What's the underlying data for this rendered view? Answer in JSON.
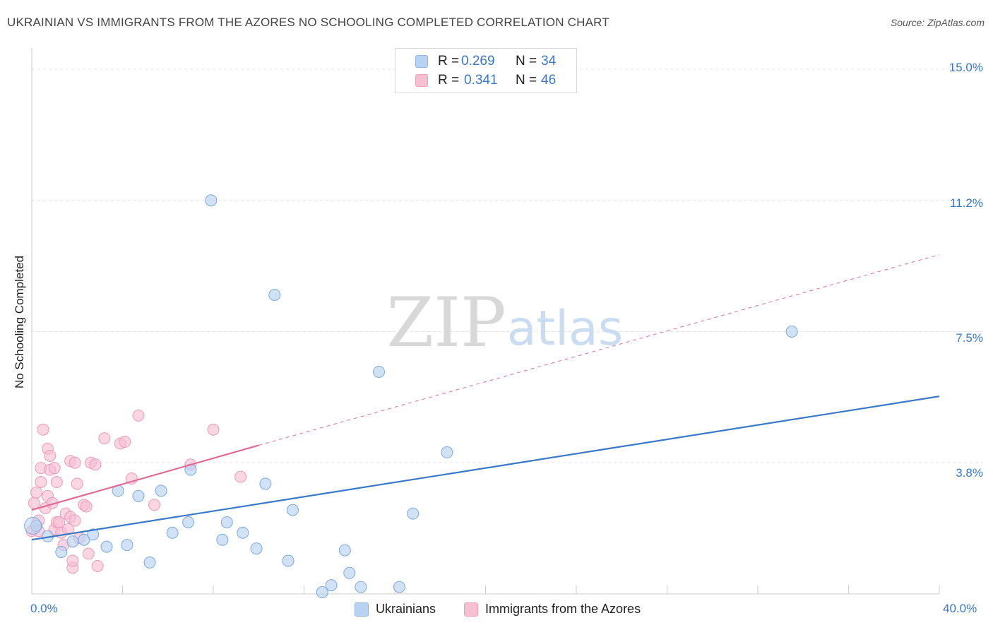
{
  "title": "UKRAINIAN VS IMMIGRANTS FROM THE AZORES NO SCHOOLING COMPLETED CORRELATION CHART",
  "source": "Source: ZipAtlas.com",
  "watermark": {
    "zip": "ZIP",
    "atlas": "atlas"
  },
  "colors": {
    "blue": "#3a78c9",
    "blue_fill": "#b8d3f2",
    "pink": "#e46a95",
    "pink_fill": "#f7bfd2",
    "grid": "#e3e3e3"
  },
  "legend": {
    "rows": [
      {
        "r_label": "R =",
        "r_value": "0.269",
        "n_label": "N =",
        "n_value": "34"
      },
      {
        "r_label": "R =",
        "r_value": "0.341",
        "n_label": "N =",
        "n_value": "46"
      }
    ]
  },
  "bottom_legend": [
    "Ukrainians",
    "Immigrants from the Azores"
  ],
  "axis": {
    "ylabel": "No Schooling Completed",
    "yticks": [
      "15.0%",
      "11.2%",
      "7.5%",
      "3.8%"
    ],
    "xticks": [
      "0.0%",
      "40.0%"
    ]
  },
  "chart_data": {
    "type": "scatter",
    "title": "UKRAINIAN VS IMMIGRANTS FROM THE AZORES NO SCHOOLING COMPLETED CORRELATION CHART",
    "xlabel": "",
    "ylabel": "No Schooling Completed",
    "xlim": [
      0,
      40
    ],
    "ylim": [
      0,
      15
    ],
    "y_gridlines": [
      3.75,
      7.5,
      11.25,
      15.0
    ],
    "series": [
      {
        "name": "Ukrainians",
        "r": 0.269,
        "n": 34,
        "trend": {
          "x": [
            0,
            40
          ],
          "y": [
            1.55,
            5.65
          ],
          "dashed_extension": false
        },
        "points": [
          [
            0.2,
            1.95
          ],
          [
            0.7,
            1.65
          ],
          [
            1.3,
            1.2
          ],
          [
            1.8,
            1.5
          ],
          [
            2.3,
            1.55
          ],
          [
            2.7,
            1.7
          ],
          [
            3.3,
            1.35
          ],
          [
            3.8,
            2.95
          ],
          [
            4.2,
            1.4
          ],
          [
            4.7,
            2.8
          ],
          [
            5.2,
            0.9
          ],
          [
            5.7,
            2.95
          ],
          [
            6.2,
            1.75
          ],
          [
            6.9,
            2.05
          ],
          [
            7.0,
            3.55
          ],
          [
            7.9,
            11.25
          ],
          [
            8.4,
            1.55
          ],
          [
            8.6,
            2.05
          ],
          [
            9.3,
            1.75
          ],
          [
            9.9,
            1.3
          ],
          [
            10.3,
            3.15
          ],
          [
            10.7,
            8.55
          ],
          [
            11.3,
            0.95
          ],
          [
            11.5,
            2.4
          ],
          [
            12.8,
            0.05
          ],
          [
            13.2,
            0.25
          ],
          [
            13.8,
            1.25
          ],
          [
            14.0,
            0.6
          ],
          [
            14.5,
            0.2
          ],
          [
            15.3,
            6.35
          ],
          [
            16.2,
            0.2
          ],
          [
            16.8,
            2.3
          ],
          [
            18.3,
            4.05
          ],
          [
            33.5,
            7.5
          ]
        ]
      },
      {
        "name": "Immigrants from the Azores",
        "r": 0.341,
        "n": 46,
        "trend": {
          "x": [
            0,
            10
          ],
          "y": [
            2.4,
            4.25
          ],
          "dashed_extension": {
            "x": [
              10,
              40
            ],
            "y": [
              4.25,
              9.7
            ]
          }
        },
        "points": [
          [
            0.1,
            2.6
          ],
          [
            0.2,
            2.9
          ],
          [
            0.3,
            2.1
          ],
          [
            0.3,
            1.8
          ],
          [
            0.4,
            3.6
          ],
          [
            0.4,
            3.2
          ],
          [
            0.5,
            4.7
          ],
          [
            0.6,
            2.45
          ],
          [
            0.7,
            2.8
          ],
          [
            0.7,
            4.15
          ],
          [
            0.8,
            3.55
          ],
          [
            0.8,
            3.95
          ],
          [
            0.9,
            2.6
          ],
          [
            1.0,
            1.85
          ],
          [
            1.0,
            3.6
          ],
          [
            1.1,
            2.05
          ],
          [
            1.1,
            3.2
          ],
          [
            1.2,
            2.05
          ],
          [
            1.3,
            1.75
          ],
          [
            1.4,
            1.4
          ],
          [
            1.5,
            2.3
          ],
          [
            1.6,
            1.85
          ],
          [
            1.7,
            2.2
          ],
          [
            1.7,
            3.8
          ],
          [
            1.8,
            0.75
          ],
          [
            1.8,
            0.95
          ],
          [
            1.9,
            3.75
          ],
          [
            1.9,
            2.1
          ],
          [
            2.0,
            3.15
          ],
          [
            2.1,
            1.6
          ],
          [
            2.3,
            2.55
          ],
          [
            2.4,
            2.5
          ],
          [
            2.5,
            1.15
          ],
          [
            2.6,
            3.75
          ],
          [
            2.8,
            3.7
          ],
          [
            2.9,
            0.8
          ],
          [
            3.2,
            4.45
          ],
          [
            3.9,
            4.3
          ],
          [
            4.1,
            4.35
          ],
          [
            4.4,
            3.3
          ],
          [
            4.7,
            5.1
          ],
          [
            5.4,
            2.55
          ],
          [
            7.0,
            3.7
          ],
          [
            8.0,
            4.7
          ],
          [
            9.2,
            3.35
          ],
          [
            0.0,
            1.8
          ]
        ]
      }
    ]
  }
}
